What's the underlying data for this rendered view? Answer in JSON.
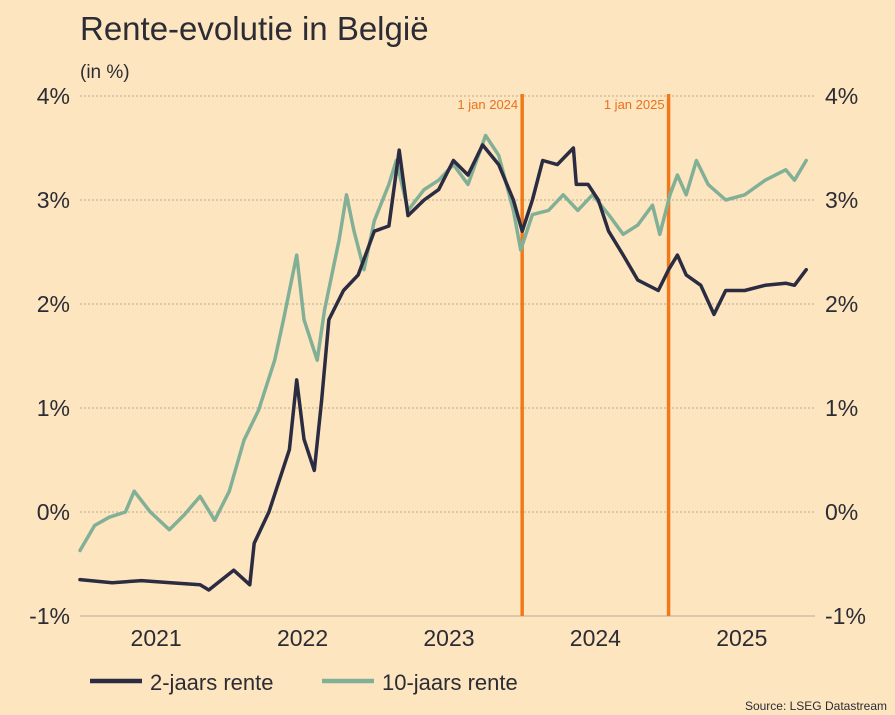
{
  "chart_data": {
    "type": "line",
    "title": "Rente-evolutie in België",
    "subtitle": "(in %)",
    "source": "Source: LSEG Datastream",
    "xlim": [
      2020.98,
      2026.0
    ],
    "ylim": [
      -1,
      4
    ],
    "yticks": [
      -1,
      0,
      1,
      2,
      3,
      4
    ],
    "ytick_labels": [
      "-1%",
      "0%",
      "1%",
      "2%",
      "3%",
      "4%"
    ],
    "xtick_labels": [
      {
        "label": "2021",
        "x": 2021.5
      },
      {
        "label": "2022",
        "x": 2022.5
      },
      {
        "label": "2023",
        "x": 2023.5
      },
      {
        "label": "2024",
        "x": 2024.5
      },
      {
        "label": "2025",
        "x": 2025.5
      }
    ],
    "grid": true,
    "legend_position": "bottom-left",
    "annotations": [
      {
        "label": "1 jan 2024",
        "x": 2024.0,
        "color": "#f07a1a"
      },
      {
        "label": "1 jan 2025",
        "x": 2025.0,
        "color": "#f07a1a"
      }
    ],
    "series": [
      {
        "name": "2-jaars rente",
        "color": "#2b2c41",
        "points": [
          [
            2020.98,
            -0.65
          ],
          [
            2021.2,
            -0.68
          ],
          [
            2021.4,
            -0.66
          ],
          [
            2021.6,
            -0.68
          ],
          [
            2021.8,
            -0.7
          ],
          [
            2021.86,
            -0.75
          ],
          [
            2022.03,
            -0.56
          ],
          [
            2022.14,
            -0.7
          ],
          [
            2022.17,
            -0.3
          ],
          [
            2022.27,
            0.0
          ],
          [
            2022.41,
            0.6
          ],
          [
            2022.46,
            1.27
          ],
          [
            2022.51,
            0.7
          ],
          [
            2022.58,
            0.4
          ],
          [
            2022.63,
            1.07
          ],
          [
            2022.68,
            1.85
          ],
          [
            2022.78,
            2.13
          ],
          [
            2022.88,
            2.28
          ],
          [
            2022.99,
            2.7
          ],
          [
            2023.09,
            2.75
          ],
          [
            2023.16,
            3.48
          ],
          [
            2023.22,
            2.85
          ],
          [
            2023.33,
            3.0
          ],
          [
            2023.43,
            3.1
          ],
          [
            2023.53,
            3.38
          ],
          [
            2023.63,
            3.24
          ],
          [
            2023.73,
            3.53
          ],
          [
            2023.84,
            3.34
          ],
          [
            2023.94,
            3.0
          ],
          [
            2024.0,
            2.7
          ],
          [
            2024.07,
            3.0
          ],
          [
            2024.14,
            3.38
          ],
          [
            2024.24,
            3.34
          ],
          [
            2024.35,
            3.5
          ],
          [
            2024.37,
            3.15
          ],
          [
            2024.45,
            3.15
          ],
          [
            2024.52,
            3.0
          ],
          [
            2024.59,
            2.7
          ],
          [
            2024.69,
            2.47
          ],
          [
            2024.79,
            2.23
          ],
          [
            2024.93,
            2.13
          ],
          [
            2025.0,
            2.33
          ],
          [
            2025.06,
            2.47
          ],
          [
            2025.12,
            2.28
          ],
          [
            2025.22,
            2.18
          ],
          [
            2025.31,
            1.9
          ],
          [
            2025.39,
            2.13
          ],
          [
            2025.52,
            2.13
          ],
          [
            2025.66,
            2.18
          ],
          [
            2025.8,
            2.2
          ],
          [
            2025.86,
            2.18
          ],
          [
            2025.94,
            2.33
          ]
        ]
      },
      {
        "name": "10-jaars rente",
        "color": "#82b096",
        "points": [
          [
            2020.98,
            -0.37
          ],
          [
            2021.08,
            -0.13
          ],
          [
            2021.18,
            -0.05
          ],
          [
            2021.29,
            0.0
          ],
          [
            2021.35,
            0.2
          ],
          [
            2021.46,
            0.0
          ],
          [
            2021.59,
            -0.17
          ],
          [
            2021.69,
            -0.03
          ],
          [
            2021.8,
            0.15
          ],
          [
            2021.9,
            -0.08
          ],
          [
            2022.0,
            0.2
          ],
          [
            2022.1,
            0.69
          ],
          [
            2022.2,
            0.98
          ],
          [
            2022.31,
            1.46
          ],
          [
            2022.37,
            1.85
          ],
          [
            2022.46,
            2.47
          ],
          [
            2022.51,
            1.85
          ],
          [
            2022.6,
            1.46
          ],
          [
            2022.65,
            1.94
          ],
          [
            2022.75,
            2.62
          ],
          [
            2022.8,
            3.05
          ],
          [
            2022.85,
            2.71
          ],
          [
            2022.92,
            2.33
          ],
          [
            2022.99,
            2.8
          ],
          [
            2023.09,
            3.15
          ],
          [
            2023.14,
            3.38
          ],
          [
            2023.22,
            2.9
          ],
          [
            2023.33,
            3.1
          ],
          [
            2023.43,
            3.19
          ],
          [
            2023.53,
            3.34
          ],
          [
            2023.63,
            3.15
          ],
          [
            2023.75,
            3.62
          ],
          [
            2023.84,
            3.43
          ],
          [
            2023.94,
            2.9
          ],
          [
            2023.99,
            2.52
          ],
          [
            2024.07,
            2.86
          ],
          [
            2024.18,
            2.9
          ],
          [
            2024.28,
            3.05
          ],
          [
            2024.38,
            2.9
          ],
          [
            2024.48,
            3.05
          ],
          [
            2024.59,
            2.86
          ],
          [
            2024.69,
            2.67
          ],
          [
            2024.79,
            2.76
          ],
          [
            2024.89,
            2.95
          ],
          [
            2024.94,
            2.67
          ],
          [
            2025.01,
            3.05
          ],
          [
            2025.06,
            3.24
          ],
          [
            2025.12,
            3.05
          ],
          [
            2025.19,
            3.38
          ],
          [
            2025.27,
            3.15
          ],
          [
            2025.39,
            3.0
          ],
          [
            2025.52,
            3.05
          ],
          [
            2025.66,
            3.19
          ],
          [
            2025.8,
            3.29
          ],
          [
            2025.86,
            3.19
          ],
          [
            2025.94,
            3.38
          ]
        ]
      }
    ]
  }
}
